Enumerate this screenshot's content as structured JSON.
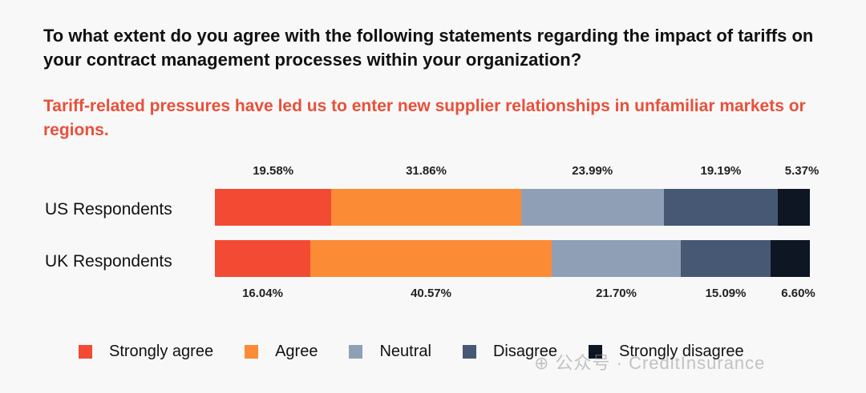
{
  "question": "To what extent do you agree with the following statements regarding the impact of tariffs on your contract management processes within your organization?",
  "statement": "Tariff-related pressures have led us to enter new supplier relationships in unfamiliar markets or regions.",
  "watermark": "⊕ 公众号 · CreditInsurance",
  "colors": {
    "statement_text": "#e8503a",
    "Strongly agree": "#f24a33",
    "Agree": "#fb8b35",
    "Neutral": "#8f9fb5",
    "Disagree": "#475874",
    "Strongly disagree": "#0d1622"
  },
  "chart_data": {
    "type": "bar",
    "orientation": "horizontal",
    "stacked": true,
    "normalized": true,
    "categories": [
      "US Respondents",
      "UK Respondents"
    ],
    "series": [
      {
        "name": "Strongly agree",
        "values": [
          19.58,
          16.04
        ]
      },
      {
        "name": "Agree",
        "values": [
          31.86,
          40.57
        ]
      },
      {
        "name": "Neutral",
        "values": [
          23.99,
          21.7
        ]
      },
      {
        "name": "Disagree",
        "values": [
          19.19,
          15.09
        ]
      },
      {
        "name": "Strongly disagree",
        "values": [
          5.37,
          6.6
        ]
      }
    ],
    "value_labels": [
      [
        "19.58%",
        "31.86%",
        "23.99%",
        "19.19%",
        "5.37%"
      ],
      [
        "16.04%",
        "40.57%",
        "21.70%",
        "15.09%",
        "6.60%"
      ]
    ],
    "legend_position": "bottom",
    "grid": false
  }
}
